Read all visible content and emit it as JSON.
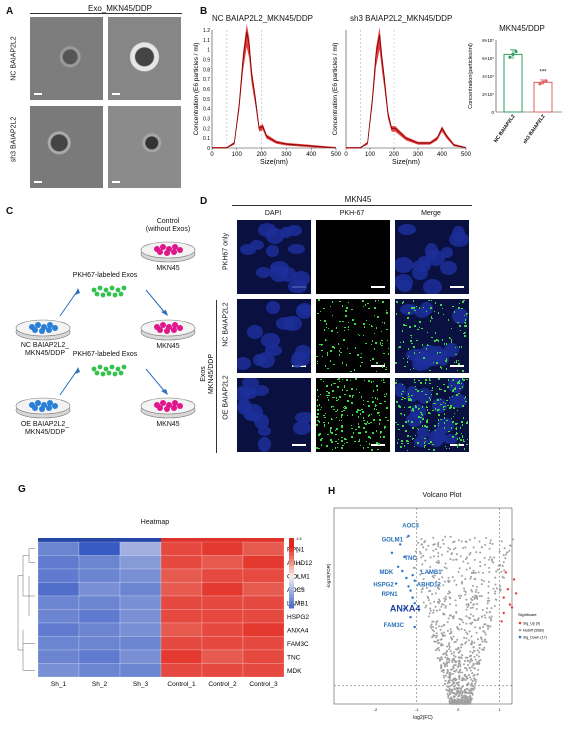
{
  "panels": {
    "A": "A",
    "B": "B",
    "C": "C",
    "D": "D",
    "G": "G",
    "H": "H"
  },
  "panel_a": {
    "title": "Exo_MKN45/DDP",
    "row1": "NC BAIAP2L2",
    "row2": "sh3 BAIAP2L2"
  },
  "panel_b": {
    "nc_title": "NC BAIAP2L2_MKN45/DDP",
    "sh3_title": "sh3 BAIAP2L2_MKN45/DDP",
    "ylabel": "Concentration (E6 particles / ml)",
    "xlabel": "Size(nm)",
    "bar_title": "MKN45/DDP",
    "bar_ylabel": "Concentration(particles/ml)",
    "bar_cats": [
      "NC BAIAP2L2",
      "sh3 BAIAP2L2"
    ],
    "bar_stars": "***",
    "bar_ticks": [
      "8×10⁷",
      "6×10⁷",
      "4×10⁷",
      "2×10⁷",
      "0"
    ],
    "x_ticks": [
      "0",
      "100",
      "200",
      "300",
      "400",
      "500"
    ],
    "y_ticks": [
      "0",
      "0.1",
      "0.2",
      "0.3",
      "0.4",
      "0.5",
      "0.6",
      "0.7",
      "0.8",
      "0.9",
      "1",
      "1.1",
      "1.2"
    ]
  },
  "panel_c": {
    "control": "Control\n(without Exos)",
    "mkn45": "MKN45",
    "pkh": "PKH67-labeled Exos",
    "nc_dish": "NC BAIAP2L2_\nMKN45/DDP",
    "oe_dish": "OE BAIAP2L2_\nMKN45/DDP"
  },
  "panel_d": {
    "title": "MKN45",
    "cols": [
      "DAPI",
      "PKH-67",
      "Merge"
    ],
    "rows": [
      "PKH67 only",
      "NC BAIAP2L2",
      "OE BAIAP2L2"
    ],
    "group": "Exos\nMKN45/DDP"
  },
  "panel_g": {
    "title": "Heatmap",
    "genes": [
      "RPN1",
      "ABHD12",
      "GOLM1",
      "AOC3",
      "LAMB1",
      "HSPG2",
      "ANXA4",
      "FAM3C",
      "TNC",
      "MDK"
    ],
    "samples": [
      "Sh_1",
      "Sh_2",
      "Sh_3",
      "Control_1",
      "Control_2",
      "Control_3"
    ],
    "legend_title": "group",
    "legend_items": [
      "Sh",
      "Control"
    ],
    "scale_ticks": [
      "1.5",
      "1",
      "0.5",
      "0",
      "-0.5",
      "-1"
    ]
  },
  "panel_h": {
    "title": "Volcano Plot",
    "ylabel": "-log10(FDR)",
    "xlabel": "log2(FC)",
    "labels": [
      "AOC3",
      "GOLM1",
      "TNC",
      "MDK",
      "LAMB1",
      "HSPG2",
      "ABHD12",
      "RPN1",
      "ANXA4",
      "FAM3C"
    ],
    "legend_title": "Significant",
    "legend_items": [
      "Sig_Up (9)",
      "NoDiff (5580)",
      "Sig_Down (17)"
    ],
    "x_ticks": [
      "-2",
      "-1",
      "0",
      "1"
    ]
  },
  "chart_data": [
    {
      "type": "line",
      "title": "NC BAIAP2L2_MKN45/DDP",
      "xlabel": "Size(nm)",
      "ylabel": "Concentration (E6 particles / ml)",
      "xlim": [
        0,
        500
      ],
      "ylim": [
        0,
        1.2
      ],
      "x": [
        0,
        60,
        90,
        110,
        125,
        140,
        150,
        160,
        175,
        190,
        205,
        220,
        260,
        300,
        350,
        400,
        450,
        500
      ],
      "y": [
        0,
        0,
        0.05,
        0.45,
        0.9,
        1.18,
        1.05,
        0.75,
        0.5,
        0.2,
        0.22,
        0.12,
        0.06,
        0.04,
        0.03,
        0.02,
        0.01,
        0
      ]
    },
    {
      "type": "line",
      "title": "sh3 BAIAP2L2_MKN45/DDP",
      "xlabel": "Size(nm)",
      "ylabel": "Concentration (E6 particles / ml)",
      "xlim": [
        0,
        500
      ],
      "ylim": [
        0,
        1.2
      ],
      "x": [
        0,
        60,
        90,
        110,
        125,
        140,
        150,
        160,
        175,
        190,
        205,
        250,
        300,
        350,
        380,
        400,
        420,
        450,
        500
      ],
      "y": [
        0,
        0,
        0.05,
        0.5,
        0.95,
        1.15,
        0.9,
        0.7,
        0.35,
        0.2,
        0.2,
        0.1,
        0.05,
        0.05,
        0.1,
        0.2,
        0.12,
        0.03,
        0
      ]
    },
    {
      "type": "bar",
      "title": "MKN45/DDP",
      "categories": [
        "NC BAIAP2L2",
        "sh3 BAIAP2L2"
      ],
      "values": [
        64000000,
        33000000
      ],
      "ylim": [
        0,
        80000000
      ]
    }
  ]
}
